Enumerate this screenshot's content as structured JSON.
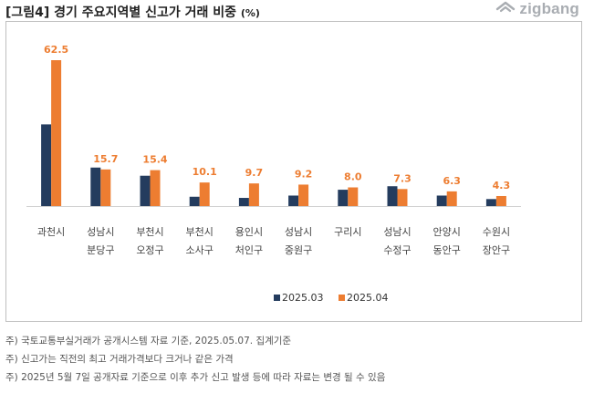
{
  "header": {
    "title": "[그림4] 경기 주요지역별 신고가 거래 비중",
    "unit": "(%)",
    "brand": "zigbang"
  },
  "chart_data": {
    "type": "bar",
    "title": "[그림4] 경기 주요지역별 신고가 거래 비중 (%)",
    "categories": [
      [
        "과천시"
      ],
      [
        "성남시",
        "분당구"
      ],
      [
        "부천시",
        "오정구"
      ],
      [
        "부천시",
        "소사구"
      ],
      [
        "용인시",
        "처인구"
      ],
      [
        "성남시",
        "중원구"
      ],
      [
        "구리시"
      ],
      [
        "성남시",
        "수정구"
      ],
      [
        "안양시",
        "동안구"
      ],
      [
        "수원시",
        "장안구"
      ]
    ],
    "series": [
      {
        "name": "2025.03",
        "color": "#243c5e",
        "values": [
          35.0,
          16.5,
          13.0,
          4.0,
          3.5,
          4.5,
          7.0,
          8.5,
          4.5,
          3.0
        ]
      },
      {
        "name": "2025.04",
        "color": "#ed7d31",
        "values": [
          62.5,
          15.7,
          15.4,
          10.1,
          9.7,
          9.2,
          8.0,
          7.3,
          6.3,
          4.3
        ]
      }
    ],
    "data_labels": [
      "62.5",
      "15.7",
      "15.4",
      "10.1",
      "9.7",
      "9.2",
      "8.0",
      "7.3",
      "6.3",
      "4.3"
    ],
    "label_color": "#ed7d31",
    "ylim": [
      0,
      62.5
    ],
    "xlabel": "",
    "ylabel": "",
    "legend_position": "bottom-center"
  },
  "notes": [
    "주) 국토교통부실거래가 공개시스템 자료 기준, 2025.05.07. 집계기준",
    "주) 신고가는 직전의 최고 거래가격보다 크거나 같은 가격",
    "주) 2025년 5월 7일 공개자료 기준으로 이후 추가 신고 발생 등에 따라 자료는 변경 될 수 있음"
  ]
}
